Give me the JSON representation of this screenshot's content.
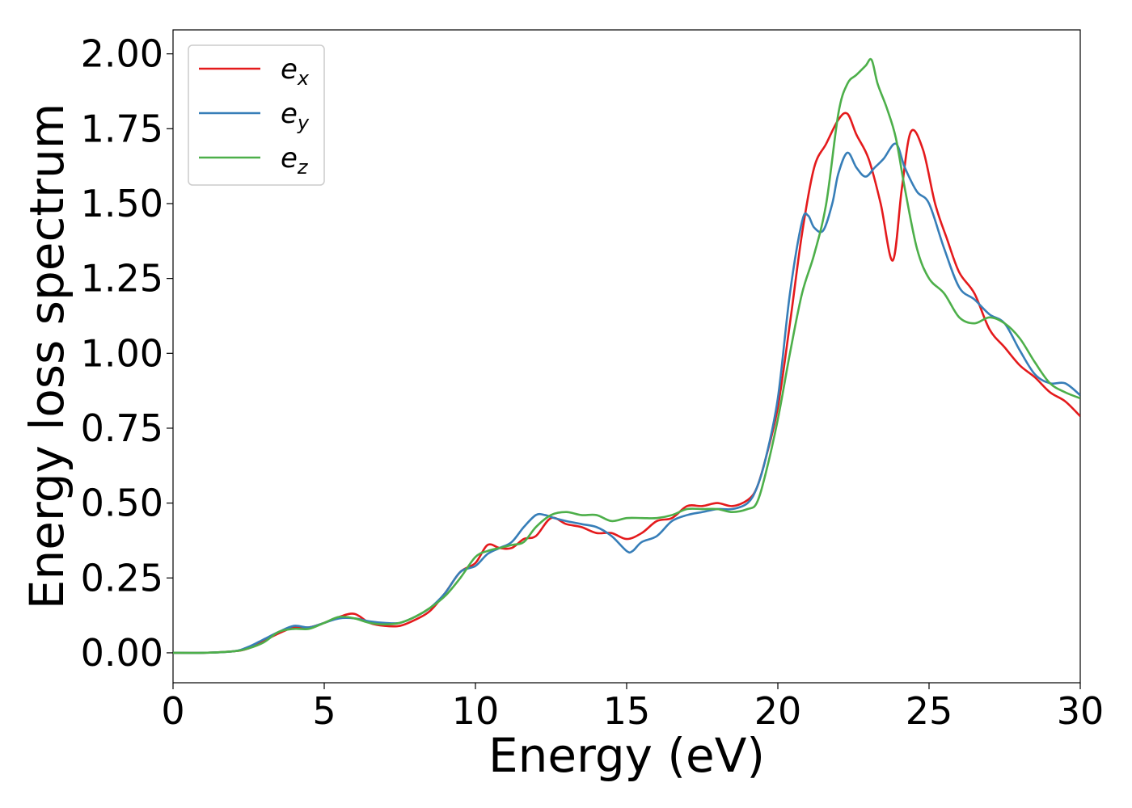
{
  "chart_data": {
    "type": "line",
    "xlabel": "Energy (eV)",
    "ylabel": "Energy loss spectrum",
    "xlim": [
      0,
      30
    ],
    "ylim": [
      -0.1,
      2.08
    ],
    "xticks": [
      0,
      5,
      10,
      15,
      20,
      25,
      30
    ],
    "xtick_labels": [
      "0",
      "5",
      "10",
      "15",
      "20",
      "25",
      "30"
    ],
    "yticks": [
      0,
      0.25,
      0.5,
      0.75,
      1.0,
      1.25,
      1.5,
      1.75,
      2.0
    ],
    "ytick_labels": [
      "0.00",
      "0.25",
      "0.50",
      "0.75",
      "1.00",
      "1.25",
      "1.50",
      "1.75",
      "2.00"
    ],
    "grid": false,
    "legend_position": "top-left",
    "series": [
      {
        "name": "e_x",
        "label_base": "e",
        "label_sub": "x",
        "color": "#e41a1c",
        "x": [
          0,
          1,
          2,
          2.5,
          3,
          3.5,
          4,
          4.5,
          5,
          5.5,
          6,
          6.5,
          7,
          7.5,
          8,
          8.5,
          9,
          9.5,
          10,
          10.4,
          10.8,
          11.2,
          11.6,
          12,
          12.5,
          13,
          13.5,
          14,
          14.5,
          15,
          15.5,
          16,
          16.5,
          17,
          17.5,
          18,
          18.5,
          19,
          19.3,
          19.6,
          20,
          20.4,
          20.8,
          21.2,
          21.6,
          22,
          22.3,
          22.6,
          23,
          23.4,
          23.8,
          24.1,
          24.4,
          24.8,
          25.2,
          25.6,
          26,
          26.5,
          27,
          27.5,
          28,
          28.5,
          29,
          29.5,
          30
        ],
        "y": [
          0,
          0,
          0.005,
          0.015,
          0.04,
          0.065,
          0.085,
          0.085,
          0.1,
          0.12,
          0.13,
          0.1,
          0.09,
          0.09,
          0.11,
          0.14,
          0.2,
          0.27,
          0.3,
          0.36,
          0.35,
          0.35,
          0.38,
          0.39,
          0.45,
          0.43,
          0.42,
          0.4,
          0.4,
          0.38,
          0.4,
          0.44,
          0.45,
          0.49,
          0.49,
          0.5,
          0.49,
          0.51,
          0.55,
          0.65,
          0.82,
          1.1,
          1.4,
          1.62,
          1.7,
          1.78,
          1.8,
          1.73,
          1.65,
          1.5,
          1.31,
          1.55,
          1.74,
          1.68,
          1.5,
          1.38,
          1.27,
          1.2,
          1.08,
          1.02,
          0.96,
          0.92,
          0.87,
          0.84,
          0.79
        ]
      },
      {
        "name": "e_y",
        "label_base": "e",
        "label_sub": "y",
        "color": "#377eb8",
        "x": [
          0,
          1,
          2,
          2.5,
          3,
          3.5,
          4,
          4.5,
          5,
          5.5,
          6,
          6.5,
          7,
          7.5,
          8,
          8.5,
          9,
          9.5,
          10,
          10.4,
          10.8,
          11.2,
          11.6,
          12,
          12.3,
          12.6,
          13,
          13.5,
          14,
          14.5,
          15,
          15.2,
          15.5,
          16,
          16.5,
          17,
          17.5,
          18,
          18.5,
          19,
          19.3,
          19.6,
          20,
          20.4,
          20.8,
          21,
          21.2,
          21.5,
          21.8,
          22,
          22.3,
          22.6,
          22.9,
          23.2,
          23.5,
          23.9,
          24.2,
          24.6,
          25,
          25.5,
          26,
          26.5,
          27,
          27.5,
          28,
          28.5,
          29,
          29.5,
          30
        ],
        "y": [
          0,
          0,
          0.005,
          0.02,
          0.045,
          0.07,
          0.09,
          0.085,
          0.1,
          0.115,
          0.115,
          0.105,
          0.1,
          0.1,
          0.12,
          0.15,
          0.2,
          0.27,
          0.29,
          0.33,
          0.35,
          0.37,
          0.42,
          0.46,
          0.46,
          0.45,
          0.44,
          0.43,
          0.42,
          0.39,
          0.34,
          0.34,
          0.37,
          0.39,
          0.44,
          0.46,
          0.47,
          0.48,
          0.48,
          0.5,
          0.55,
          0.65,
          0.85,
          1.2,
          1.44,
          1.46,
          1.42,
          1.41,
          1.5,
          1.6,
          1.67,
          1.62,
          1.59,
          1.62,
          1.65,
          1.7,
          1.62,
          1.54,
          1.5,
          1.35,
          1.22,
          1.18,
          1.13,
          1.1,
          1.01,
          0.93,
          0.9,
          0.9,
          0.86
        ]
      },
      {
        "name": "e_z",
        "label_base": "e",
        "label_sub": "z",
        "color": "#4daf4a",
        "x": [
          0,
          1,
          2,
          2.5,
          3,
          3.5,
          4,
          4.5,
          5,
          5.5,
          6,
          6.5,
          7,
          7.5,
          8,
          8.5,
          9,
          9.5,
          10,
          10.4,
          10.8,
          11.2,
          11.6,
          12,
          12.5,
          13,
          13.5,
          14,
          14.5,
          15,
          15.5,
          16,
          16.5,
          17,
          17.5,
          18,
          18.5,
          19,
          19.3,
          19.6,
          20,
          20.4,
          20.8,
          21.2,
          21.6,
          22,
          22.3,
          22.6,
          22.9,
          23.1,
          23.3,
          23.6,
          23.9,
          24.2,
          24.6,
          25,
          25.5,
          26,
          26.5,
          27,
          27.5,
          28,
          28.5,
          29,
          29.5,
          30
        ],
        "y": [
          0,
          0,
          0.005,
          0.015,
          0.035,
          0.07,
          0.08,
          0.08,
          0.1,
          0.12,
          0.115,
          0.1,
          0.095,
          0.1,
          0.12,
          0.15,
          0.19,
          0.25,
          0.32,
          0.34,
          0.35,
          0.36,
          0.37,
          0.42,
          0.46,
          0.47,
          0.46,
          0.46,
          0.44,
          0.45,
          0.45,
          0.45,
          0.46,
          0.48,
          0.48,
          0.48,
          0.47,
          0.48,
          0.5,
          0.6,
          0.78,
          1.0,
          1.2,
          1.33,
          1.5,
          1.8,
          1.9,
          1.93,
          1.96,
          1.98,
          1.9,
          1.82,
          1.72,
          1.55,
          1.35,
          1.25,
          1.2,
          1.12,
          1.1,
          1.12,
          1.1,
          1.05,
          0.97,
          0.9,
          0.87,
          0.85
        ]
      }
    ]
  }
}
